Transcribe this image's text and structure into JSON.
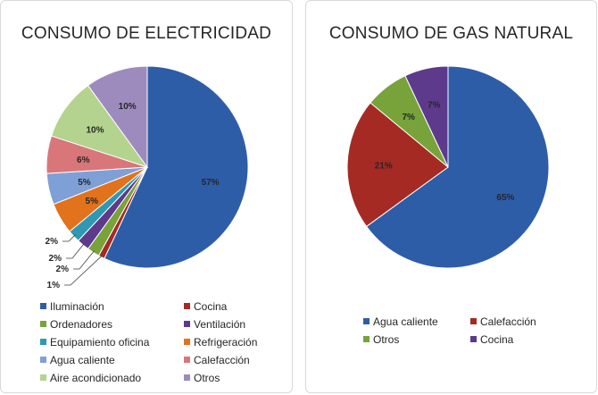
{
  "chart_data": [
    {
      "type": "pie",
      "title": "CONSUMO DE ELECTRICIDAD",
      "series": [
        {
          "slices": [
            {
              "label": "Iluminación",
              "value": 57,
              "display": "57%",
              "color": "#2E5DA8"
            },
            {
              "label": "Cocina",
              "value": 1,
              "display": "1%",
              "color": "#A52A24"
            },
            {
              "label": "Ordenadores",
              "value": 2,
              "display": "2%",
              "color": "#77A33A"
            },
            {
              "label": "Ventilación",
              "value": 2,
              "display": "2%",
              "color": "#5D3A8C"
            },
            {
              "label": "Equipamiento oficina",
              "value": 2,
              "display": "2%",
              "color": "#2F98B2"
            },
            {
              "label": "Refrigeración",
              "value": 5,
              "display": "5%",
              "color": "#E3721C"
            },
            {
              "label": "Agua caliente",
              "value": 5,
              "display": "5%",
              "color": "#7FA0D6"
            },
            {
              "label": "Calefacción",
              "value": 6,
              "display": "6%",
              "color": "#D9767A"
            },
            {
              "label": "Aire acondicionado",
              "value": 10,
              "display": "10%",
              "color": "#B4D38E"
            },
            {
              "label": "Otros",
              "value": 10,
              "display": "10%",
              "color": "#9D8BBE"
            }
          ]
        }
      ],
      "legend_position": "bottom"
    },
    {
      "type": "pie",
      "title": "CONSUMO DE GAS NATURAL",
      "series": [
        {
          "slices": [
            {
              "label": "Agua caliente",
              "value": 65,
              "display": "65%",
              "color": "#2E5DA8"
            },
            {
              "label": "Calefacción",
              "value": 21,
              "display": "21%",
              "color": "#A52A24"
            },
            {
              "label": "Otros",
              "value": 7,
              "display": "7%",
              "color": "#77A33A"
            },
            {
              "label": "Cocina",
              "value": 7,
              "display": "7%",
              "color": "#5D3A8C"
            }
          ]
        }
      ],
      "legend_position": "bottom"
    }
  ]
}
